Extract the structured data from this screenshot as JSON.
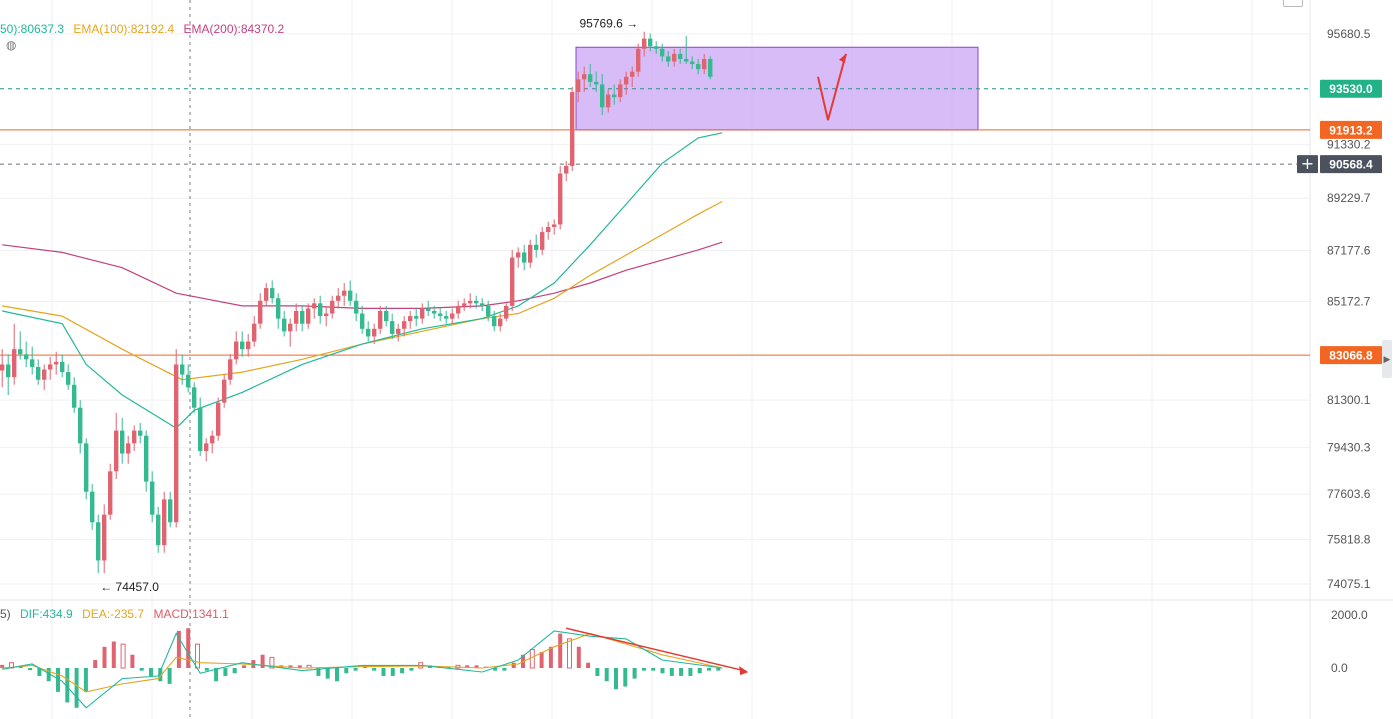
{
  "chart_data": {
    "type": "candlestick",
    "price_axis": {
      "ticks": [
        "95680.5",
        "91330.2",
        "89229.7",
        "87177.6",
        "85172.7",
        "81300.1",
        "79430.3",
        "77603.6",
        "75818.8",
        "74075.1"
      ]
    },
    "ema_legend": {
      "ema50": "50):80637.3",
      "ema100": "EMA(100):82192.4",
      "ema200": "EMA(200):84370.2"
    },
    "price_tags": [
      {
        "name": "price-tag-current",
        "value": "93530.0",
        "color": "#21b287"
      },
      {
        "name": "price-tag-resistance",
        "value": "91913.2",
        "color": "#f26522"
      },
      {
        "name": "price-tag-crosshair",
        "value": "90568.4",
        "color": "#4b525e"
      },
      {
        "name": "price-tag-support",
        "value": "83066.8",
        "color": "#f26522"
      }
    ],
    "annotations": {
      "high": "95769.6",
      "low": "74457.0"
    },
    "zone": {
      "top": 95160,
      "bottom": 91913.2
    },
    "horizontal_lines": [
      {
        "price": 91913.2,
        "style": "solid",
        "color": "#f26522"
      },
      {
        "price": 83066.8,
        "style": "solid",
        "color": "#f26522"
      },
      {
        "price": 93530.0,
        "style": "dashed",
        "color": "#2a8f8a"
      },
      {
        "price": 90568.4,
        "style": "dashed",
        "color": "#6b7280"
      }
    ],
    "candles": [
      [
        82460,
        83300,
        81800,
        82700
      ],
      [
        82700,
        83100,
        81500,
        82200
      ],
      [
        82200,
        84300,
        81900,
        83300
      ],
      [
        83300,
        84000,
        82900,
        83100
      ],
      [
        83100,
        83600,
        82600,
        82900
      ],
      [
        82900,
        83400,
        82300,
        82600
      ],
      [
        82600,
        82900,
        81900,
        82100
      ],
      [
        82100,
        82700,
        81700,
        82500
      ],
      [
        82500,
        83000,
        82100,
        82700
      ],
      [
        82700,
        83200,
        82300,
        82800
      ],
      [
        82800,
        83100,
        82200,
        82400
      ],
      [
        82400,
        82700,
        81700,
        81900
      ],
      [
        81900,
        82200,
        80800,
        81000
      ],
      [
        81000,
        81300,
        79200,
        79600
      ],
      [
        79600,
        79800,
        77400,
        77700
      ],
      [
        77700,
        78000,
        76200,
        76500
      ],
      [
        76500,
        76800,
        74500,
        75000
      ],
      [
        75000,
        77200,
        74500,
        76800
      ],
      [
        76800,
        78800,
        76600,
        78500
      ],
      [
        78500,
        80800,
        78200,
        80100
      ],
      [
        80100,
        80600,
        78800,
        79200
      ],
      [
        79200,
        79900,
        78800,
        79600
      ],
      [
        79600,
        80300,
        79300,
        80100
      ],
      [
        80100,
        80400,
        79600,
        79900
      ],
      [
        79900,
        80100,
        77700,
        78100
      ],
      [
        78100,
        78500,
        76500,
        76800
      ],
      [
        76800,
        77100,
        75300,
        75600
      ],
      [
        75600,
        77700,
        75300,
        77400
      ],
      [
        77400,
        77700,
        76300,
        76500
      ],
      [
        76500,
        83300,
        76300,
        82700
      ],
      [
        82700,
        83100,
        81900,
        82300
      ],
      [
        82300,
        82700,
        81600,
        81800
      ],
      [
        81800,
        82000,
        80800,
        81000
      ],
      [
        81000,
        81400,
        79100,
        79300
      ],
      [
        79300,
        79800,
        78900,
        79600
      ],
      [
        79600,
        80100,
        79200,
        79900
      ],
      [
        79900,
        81400,
        79700,
        81200
      ],
      [
        81200,
        82300,
        81000,
        82100
      ],
      [
        82100,
        83100,
        81900,
        82900
      ],
      [
        82900,
        84000,
        82700,
        83600
      ],
      [
        83600,
        84000,
        83000,
        83300
      ],
      [
        83300,
        83900,
        83000,
        83600
      ],
      [
        83600,
        84600,
        83400,
        84300
      ],
      [
        84300,
        85500,
        84100,
        85200
      ],
      [
        85200,
        85900,
        85000,
        85700
      ],
      [
        85700,
        86000,
        85100,
        85300
      ],
      [
        85300,
        85500,
        84100,
        84500
      ],
      [
        84500,
        84800,
        83800,
        84000
      ],
      [
        84000,
        84500,
        83400,
        84300
      ],
      [
        84300,
        85100,
        84000,
        84800
      ],
      [
        84800,
        85000,
        84000,
        84300
      ],
      [
        84300,
        85100,
        84100,
        84900
      ],
      [
        84900,
        85300,
        84500,
        85100
      ],
      [
        85100,
        85400,
        84300,
        84600
      ],
      [
        84600,
        85000,
        84200,
        84700
      ],
      [
        84700,
        85400,
        84500,
        85200
      ],
      [
        85200,
        85700,
        84900,
        85400
      ],
      [
        85400,
        85900,
        85000,
        85600
      ],
      [
        85600,
        86000,
        85000,
        85200
      ],
      [
        85200,
        85500,
        84400,
        84700
      ],
      [
        84700,
        85000,
        83900,
        84100
      ],
      [
        84100,
        84400,
        83600,
        83800
      ],
      [
        83800,
        84300,
        83500,
        84100
      ],
      [
        84100,
        85000,
        83900,
        84800
      ],
      [
        84800,
        85000,
        84200,
        84400
      ],
      [
        84400,
        84700,
        83700,
        83900
      ],
      [
        83900,
        84300,
        83600,
        84100
      ],
      [
        84100,
        84600,
        83800,
        84400
      ],
      [
        84400,
        84800,
        84100,
        84600
      ],
      [
        84600,
        84900,
        84200,
        84500
      ],
      [
        84500,
        85100,
        84300,
        84900
      ],
      [
        84900,
        85200,
        84600,
        84800
      ],
      [
        84800,
        85000,
        84500,
        84700
      ],
      [
        84700,
        84900,
        84400,
        84600
      ],
      [
        84600,
        84800,
        84300,
        84500
      ],
      [
        84500,
        84900,
        84300,
        84700
      ],
      [
        84700,
        85200,
        84500,
        85000
      ],
      [
        85000,
        85300,
        84800,
        85100
      ],
      [
        85100,
        85500,
        84900,
        85200
      ],
      [
        85200,
        85400,
        84900,
        85100
      ],
      [
        85100,
        85300,
        84800,
        85000
      ],
      [
        85000,
        85200,
        84400,
        84600
      ],
      [
        84600,
        84800,
        84000,
        84200
      ],
      [
        84200,
        84700,
        84000,
        84500
      ],
      [
        84500,
        85100,
        84400,
        85000
      ],
      [
        85000,
        87200,
        84800,
        86900
      ],
      [
        86900,
        87300,
        86500,
        87100
      ],
      [
        87100,
        87400,
        86400,
        86700
      ],
      [
        86700,
        87600,
        86500,
        87400
      ],
      [
        87400,
        87800,
        86900,
        87200
      ],
      [
        87200,
        88100,
        87000,
        87900
      ],
      [
        87900,
        88300,
        87600,
        88100
      ],
      [
        88100,
        88400,
        87800,
        88200
      ],
      [
        88200,
        90500,
        88000,
        90200
      ],
      [
        90200,
        90700,
        89900,
        90500
      ],
      [
        90500,
        93600,
        90300,
        93400
      ],
      [
        93400,
        94200,
        93000,
        93900
      ],
      [
        93900,
        94400,
        93400,
        94100
      ],
      [
        94100,
        94500,
        93600,
        93800
      ],
      [
        93800,
        94200,
        93400,
        93700
      ],
      [
        93700,
        94100,
        92500,
        92800
      ],
      [
        92800,
        93500,
        92600,
        93300
      ],
      [
        93300,
        93700,
        92900,
        93200
      ],
      [
        93200,
        93900,
        93000,
        93700
      ],
      [
        93700,
        94200,
        93300,
        94000
      ],
      [
        94000,
        94400,
        93600,
        94200
      ],
      [
        94200,
        95300,
        94000,
        95100
      ],
      [
        95100,
        95770,
        94800,
        95500
      ],
      [
        95500,
        95700,
        95000,
        95200
      ],
      [
        95200,
        95400,
        94900,
        95100
      ],
      [
        95100,
        95300,
        94600,
        94800
      ],
      [
        94800,
        95000,
        94400,
        94600
      ],
      [
        94600,
        95100,
        94400,
        94900
      ],
      [
        94900,
        95100,
        94500,
        94700
      ],
      [
        94700,
        95600,
        94500,
        94600
      ],
      [
        94600,
        94800,
        94300,
        94500
      ],
      [
        94500,
        94700,
        94100,
        94300
      ],
      [
        94300,
        94900,
        94100,
        94700
      ],
      [
        94700,
        94800,
        93900,
        94000
      ]
    ],
    "ema50": [
      [
        0,
        84800
      ],
      [
        10,
        84300
      ],
      [
        14,
        82700
      ],
      [
        20,
        81500
      ],
      [
        29,
        80200
      ],
      [
        32,
        80900
      ],
      [
        40,
        81600
      ],
      [
        50,
        82700
      ],
      [
        60,
        83500
      ],
      [
        70,
        84100
      ],
      [
        80,
        84500
      ],
      [
        86,
        85000
      ],
      [
        92,
        85900
      ],
      [
        98,
        87400
      ],
      [
        104,
        89000
      ],
      [
        110,
        90600
      ],
      [
        116,
        91600
      ],
      [
        120,
        91800
      ]
    ],
    "ema100": [
      [
        0,
        85000
      ],
      [
        10,
        84600
      ],
      [
        20,
        83300
      ],
      [
        30,
        82100
      ],
      [
        40,
        82400
      ],
      [
        50,
        82900
      ],
      [
        60,
        83500
      ],
      [
        70,
        84000
      ],
      [
        80,
        84500
      ],
      [
        86,
        84700
      ],
      [
        92,
        85300
      ],
      [
        98,
        86200
      ],
      [
        104,
        87000
      ],
      [
        110,
        87800
      ],
      [
        116,
        88600
      ],
      [
        120,
        89100
      ]
    ],
    "ema200": [
      [
        0,
        87400
      ],
      [
        10,
        87100
      ],
      [
        20,
        86500
      ],
      [
        29,
        85500
      ],
      [
        40,
        85000
      ],
      [
        50,
        85000
      ],
      [
        60,
        84900
      ],
      [
        70,
        84900
      ],
      [
        80,
        85000
      ],
      [
        86,
        85200
      ],
      [
        92,
        85500
      ],
      [
        98,
        85900
      ],
      [
        104,
        86400
      ],
      [
        110,
        86800
      ],
      [
        116,
        87200
      ],
      [
        120,
        87500
      ]
    ],
    "projection": [
      [
        94000
      ],
      [
        92300
      ],
      [
        94900
      ]
    ],
    "macd": {
      "legend": {
        "prefix": "5)",
        "dif": "DIF:434.9",
        "dea": "DEA:-235.7",
        "macd": "MACD:1341.1"
      },
      "ticks": [
        "2000.0",
        "0.0"
      ],
      "hist": [
        120,
        200,
        60,
        -80,
        -300,
        -500,
        -900,
        -1300,
        -1500,
        -900,
        300,
        800,
        1000,
        900,
        500,
        -100,
        -300,
        -500,
        -600,
        1400,
        1500,
        900,
        -100,
        -500,
        -300,
        -200,
        100,
        300,
        500,
        400,
        100,
        100,
        100,
        100,
        -300,
        -400,
        -500,
        -200,
        -100,
        100,
        -100,
        -300,
        -300,
        -200,
        -100,
        200,
        100,
        50,
        50,
        100,
        100,
        100,
        50,
        -100,
        -100,
        200,
        500,
        700,
        600,
        800,
        1300,
        1100,
        800,
        200,
        -300,
        -500,
        -800,
        -700,
        -400,
        -100,
        -100,
        -200,
        -300,
        -300,
        -300,
        -200,
        -100,
        -100
      ],
      "dif": [
        [
          0,
          -50
        ],
        [
          5,
          150
        ],
        [
          10,
          -500
        ],
        [
          14,
          -1500
        ],
        [
          20,
          -400
        ],
        [
          26,
          -300
        ],
        [
          29,
          1300
        ],
        [
          33,
          -200
        ],
        [
          40,
          200
        ],
        [
          50,
          -100
        ],
        [
          60,
          100
        ],
        [
          70,
          100
        ],
        [
          80,
          -150
        ],
        [
          86,
          300
        ],
        [
          92,
          1400
        ],
        [
          98,
          1200
        ],
        [
          104,
          1100
        ],
        [
          110,
          300
        ],
        [
          120,
          0
        ]
      ],
      "dea": [
        [
          0,
          0
        ],
        [
          5,
          100
        ],
        [
          10,
          -300
        ],
        [
          14,
          -900
        ],
        [
          20,
          -600
        ],
        [
          26,
          -400
        ],
        [
          29,
          400
        ],
        [
          33,
          200
        ],
        [
          40,
          150
        ],
        [
          50,
          0
        ],
        [
          60,
          50
        ],
        [
          70,
          80
        ],
        [
          80,
          0
        ],
        [
          86,
          150
        ],
        [
          92,
          800
        ],
        [
          98,
          1300
        ],
        [
          104,
          900
        ],
        [
          110,
          500
        ],
        [
          120,
          0
        ]
      ],
      "trend_arrow": [
        [
          94,
          1500
        ],
        [
          124,
          -120
        ]
      ]
    }
  }
}
